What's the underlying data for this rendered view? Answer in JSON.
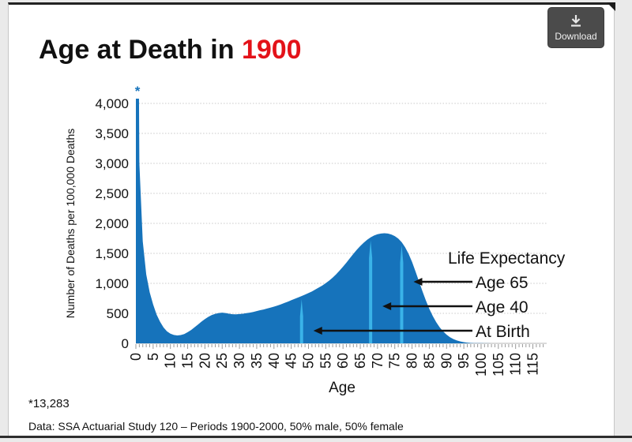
{
  "toolbar": {
    "download_label": "Download"
  },
  "title": {
    "prefix": "Age at Death in ",
    "year": "1900",
    "year_color": "#e31219"
  },
  "footnotes": {
    "asterisk_note": "*13,283",
    "source": "Data: SSA Actuarial Study 120 – Periods 1900-2000, 50% male, 50% female"
  },
  "chart_data": {
    "type": "area",
    "title": "Age at Death in 1900",
    "xlabel": "Age",
    "ylabel": "Number of Deaths per 100,000 Deaths",
    "xlim": [
      0,
      119
    ],
    "ylim": [
      0,
      4000
    ],
    "y_tick_step": 500,
    "x_tick_step": 5,
    "x_tick_max": 115,
    "grid": "horizontal-dotted",
    "legend": "none",
    "clipped_point": {
      "age": 0,
      "value": 13283,
      "note_symbol": "*",
      "footnote": "*13,283"
    },
    "series": [
      {
        "name": "Deaths per 100,000 by age at death",
        "points": [
          [
            0,
            13283
          ],
          [
            1,
            3000
          ],
          [
            2,
            1700
          ],
          [
            3,
            1150
          ],
          [
            4,
            850
          ],
          [
            5,
            650
          ],
          [
            6,
            480
          ],
          [
            7,
            360
          ],
          [
            8,
            265
          ],
          [
            9,
            200
          ],
          [
            10,
            160
          ],
          [
            11,
            140
          ],
          [
            12,
            132
          ],
          [
            13,
            138
          ],
          [
            14,
            155
          ],
          [
            15,
            185
          ],
          [
            16,
            222
          ],
          [
            17,
            268
          ],
          [
            18,
            315
          ],
          [
            19,
            362
          ],
          [
            20,
            405
          ],
          [
            21,
            442
          ],
          [
            22,
            472
          ],
          [
            23,
            492
          ],
          [
            24,
            505
          ],
          [
            25,
            512
          ],
          [
            26,
            505
          ],
          [
            27,
            494
          ],
          [
            28,
            486
          ],
          [
            29,
            484
          ],
          [
            30,
            488
          ],
          [
            31,
            494
          ],
          [
            32,
            502
          ],
          [
            33,
            512
          ],
          [
            34,
            524
          ],
          [
            35,
            538
          ],
          [
            36,
            552
          ],
          [
            37,
            565
          ],
          [
            38,
            580
          ],
          [
            39,
            596
          ],
          [
            40,
            612
          ],
          [
            41,
            630
          ],
          [
            42,
            650
          ],
          [
            43,
            672
          ],
          [
            44,
            694
          ],
          [
            45,
            718
          ],
          [
            46,
            742
          ],
          [
            47,
            765
          ],
          [
            48,
            788
          ],
          [
            49,
            812
          ],
          [
            50,
            838
          ],
          [
            51,
            866
          ],
          [
            52,
            897
          ],
          [
            53,
            930
          ],
          [
            54,
            965
          ],
          [
            55,
            1003
          ],
          [
            56,
            1046
          ],
          [
            57,
            1095
          ],
          [
            58,
            1150
          ],
          [
            59,
            1212
          ],
          [
            60,
            1278
          ],
          [
            61,
            1348
          ],
          [
            62,
            1420
          ],
          [
            63,
            1492
          ],
          [
            64,
            1560
          ],
          [
            65,
            1622
          ],
          [
            66,
            1678
          ],
          [
            67,
            1726
          ],
          [
            68,
            1766
          ],
          [
            69,
            1797
          ],
          [
            70,
            1818
          ],
          [
            71,
            1830
          ],
          [
            72,
            1835
          ],
          [
            73,
            1830
          ],
          [
            74,
            1815
          ],
          [
            75,
            1788
          ],
          [
            76,
            1746
          ],
          [
            77,
            1686
          ],
          [
            78,
            1602
          ],
          [
            79,
            1492
          ],
          [
            80,
            1356
          ],
          [
            81,
            1200
          ],
          [
            82,
            1035
          ],
          [
            83,
            870
          ],
          [
            84,
            715
          ],
          [
            85,
            576
          ],
          [
            86,
            455
          ],
          [
            87,
            352
          ],
          [
            88,
            268
          ],
          [
            89,
            199
          ],
          [
            90,
            145
          ],
          [
            91,
            103
          ],
          [
            92,
            71
          ],
          [
            93,
            48
          ],
          [
            94,
            31
          ],
          [
            95,
            20
          ],
          [
            96,
            12
          ],
          [
            97,
            7
          ],
          [
            98,
            4
          ],
          [
            99,
            3
          ],
          [
            100,
            2
          ],
          [
            101,
            1
          ],
          [
            102,
            1
          ],
          [
            103,
            0
          ],
          [
            106,
            0
          ],
          [
            110,
            0
          ],
          [
            115,
            0
          ]
        ]
      }
    ],
    "annotations": {
      "heading": "Life Expectancy",
      "items": [
        {
          "label": "Age 65",
          "marker_age": 77
        },
        {
          "label": "Age 40",
          "marker_age": 68
        },
        {
          "label": "At Birth",
          "marker_age": 48
        }
      ]
    },
    "colors": {
      "area": "#1673bb",
      "marker_stripe": "#3ab3e8",
      "annotation_text": "#111111",
      "grid": "#c8c8c8",
      "tick": "#999999",
      "axis_text": "#111111"
    }
  }
}
